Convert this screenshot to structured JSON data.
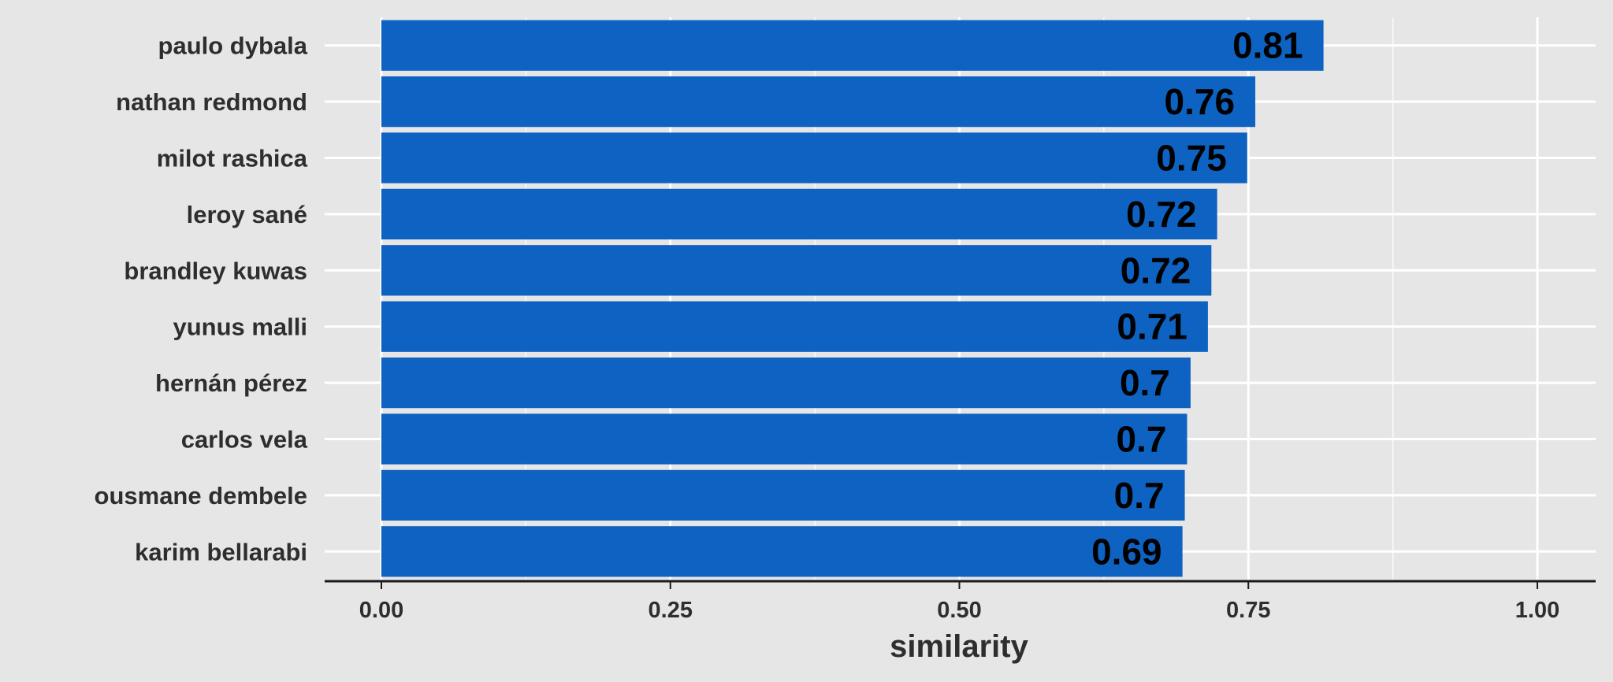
{
  "chart_data": {
    "type": "bar",
    "orientation": "horizontal",
    "categories": [
      "paulo dybala",
      "nathan redmond",
      "milot rashica",
      "leroy sané",
      "brandley kuwas",
      "yunus malli",
      "hernán pérez",
      "carlos vela",
      "ousmane dembele",
      "karim bellarabi"
    ],
    "values": [
      0.815,
      0.756,
      0.749,
      0.723,
      0.718,
      0.715,
      0.7,
      0.697,
      0.695,
      0.693
    ],
    "value_labels": [
      "0.81",
      "0.76",
      "0.75",
      "0.72",
      "0.72",
      "0.71",
      "0.7",
      "0.7",
      "0.7",
      "0.69"
    ],
    "xlabel": "similarity",
    "ylabel": "",
    "xlim": [
      0,
      1
    ],
    "xticks": [
      0,
      0.25,
      0.5,
      0.75,
      1
    ],
    "xtick_labels": [
      "0.00",
      "0.25",
      "0.50",
      "0.75",
      "1.00"
    ],
    "grid": true,
    "legend": "none",
    "colors": {
      "bar": "#0d62c2",
      "background": "#e6e6e6",
      "grid": "#ffffff",
      "axis": "#1a1a1a",
      "label_text": "#2e2e2e",
      "value_text": "#000000"
    }
  }
}
